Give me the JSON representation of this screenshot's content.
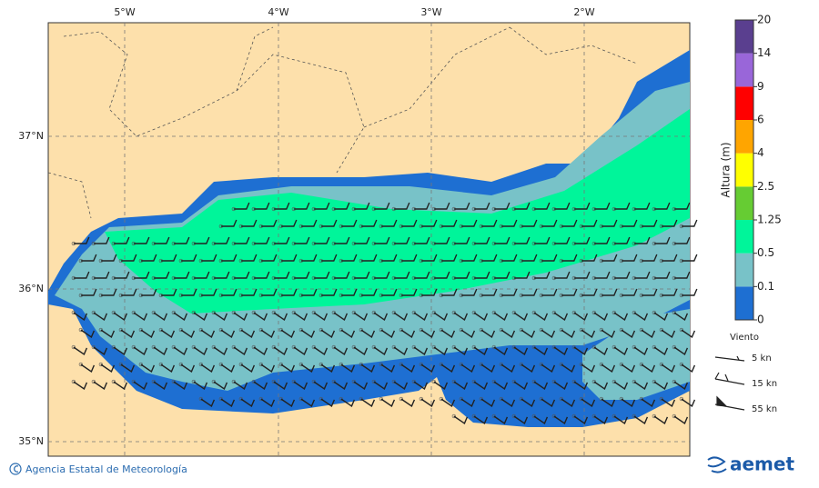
{
  "map": {
    "x_ticks": [
      "5°W",
      "4°W",
      "3°W",
      "2°W"
    ],
    "y_ticks": [
      "37°N",
      "36°N",
      "35°N"
    ]
  },
  "legend": {
    "title": "Altura (m)",
    "levels": [
      0,
      0.1,
      0.5,
      1.25,
      2.5,
      4,
      6,
      9,
      14,
      20
    ],
    "colors": [
      "#1e6fd2",
      "#78c2c8",
      "#00f59a",
      "#66cc33",
      "#ffff00",
      "#ffa500",
      "#ff0000",
      "#9966d9",
      "#5a3f8f"
    ]
  },
  "wind_legend": {
    "title": "Viento",
    "items": [
      "5 kn",
      "15 kn",
      "55 kn"
    ]
  },
  "footer": {
    "credit": "Agencia Estatal de Meteorología",
    "logo": "aemet"
  }
}
